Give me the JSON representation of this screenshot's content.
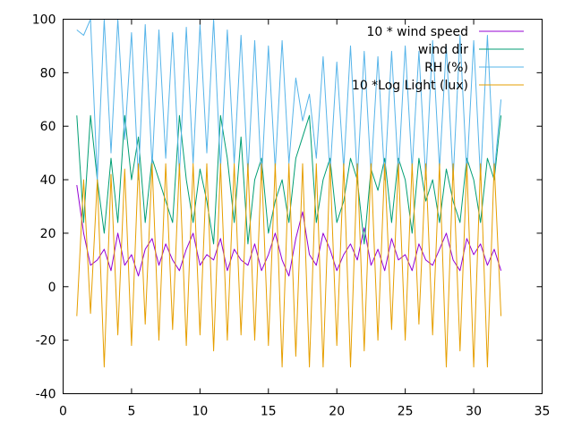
{
  "chart_data": {
    "type": "line",
    "title": "",
    "xlabel": "",
    "ylabel": "",
    "xlim": [
      0,
      35
    ],
    "ylim": [
      -40,
      100
    ],
    "x_ticks": [
      0,
      5,
      10,
      15,
      20,
      25,
      30,
      35
    ],
    "y_ticks": [
      -40,
      -20,
      0,
      20,
      40,
      60,
      80,
      100
    ],
    "x_tick_labels": [
      "0",
      "5",
      "10",
      "15",
      "20",
      "25",
      "30",
      "35"
    ],
    "y_tick_labels": [
      "-40",
      "-20",
      "0",
      "20",
      "40",
      "60",
      "80",
      "100"
    ],
    "grid": false,
    "legend_position": "top-right",
    "x_range_of_data": [
      1,
      32
    ],
    "series": [
      {
        "name": "10 * wind speed",
        "color": "#9400d3",
        "x": [
          1,
          1.5,
          2,
          2.5,
          3,
          3.5,
          4,
          4.5,
          5,
          5.5,
          6,
          6.5,
          7,
          7.5,
          8,
          8.5,
          9,
          9.5,
          10,
          10.5,
          11,
          11.5,
          12,
          12.5,
          13,
          13.5,
          14,
          14.5,
          15,
          15.5,
          16,
          16.5,
          17,
          17.5,
          18,
          18.5,
          19,
          19.5,
          20,
          20.5,
          21,
          21.5,
          22,
          22.5,
          23,
          23.5,
          24,
          24.5,
          25,
          25.5,
          26,
          26.5,
          27,
          27.5,
          28,
          28.5,
          29,
          29.5,
          30,
          30.5,
          31,
          31.5,
          32
        ],
        "values": [
          38,
          20,
          8,
          10,
          14,
          6,
          20,
          8,
          12,
          4,
          14,
          18,
          8,
          16,
          10,
          6,
          14,
          20,
          8,
          12,
          10,
          18,
          6,
          14,
          10,
          8,
          16,
          6,
          12,
          20,
          10,
          4,
          18,
          28,
          12,
          8,
          20,
          14,
          6,
          12,
          16,
          10,
          22,
          8,
          14,
          6,
          18,
          10,
          12,
          6,
          16,
          10,
          8,
          14,
          20,
          10,
          6,
          18,
          12,
          16,
          8,
          14,
          6
        ]
      },
      {
        "name": "wind dir",
        "color": "#009e73",
        "x": [
          1,
          1.5,
          2,
          2.5,
          3,
          3.5,
          4,
          4.5,
          5,
          5.5,
          6,
          6.5,
          7,
          7.5,
          8,
          8.5,
          9,
          9.5,
          10,
          10.5,
          11,
          11.5,
          12,
          12.5,
          13,
          13.5,
          14,
          14.5,
          15,
          15.5,
          16,
          16.5,
          17,
          17.5,
          18,
          18.5,
          19,
          19.5,
          20,
          20.5,
          21,
          21.5,
          22,
          22.5,
          23,
          23.5,
          24,
          24.5,
          25,
          25.5,
          26,
          26.5,
          27,
          27.5,
          28,
          28.5,
          29,
          29.5,
          30,
          30.5,
          31,
          31.5,
          32
        ],
        "values": [
          64,
          24,
          64,
          40,
          20,
          48,
          24,
          64,
          40,
          56,
          24,
          48,
          40,
          32,
          24,
          64,
          40,
          24,
          44,
          32,
          16,
          64,
          48,
          24,
          56,
          16,
          40,
          48,
          20,
          32,
          40,
          24,
          48,
          56,
          64,
          24,
          40,
          48,
          24,
          32,
          48,
          40,
          16,
          44,
          36,
          48,
          24,
          48,
          40,
          20,
          48,
          32,
          40,
          24,
          44,
          32,
          24,
          48,
          40,
          24,
          48,
          40,
          64
        ]
      },
      {
        "name": "RH (%)",
        "color": "#56b4e9",
        "x": [
          1,
          1.5,
          2,
          2.5,
          3,
          3.5,
          4,
          4.5,
          5,
          5.5,
          6,
          6.5,
          7,
          7.5,
          8,
          8.5,
          9,
          9.5,
          10,
          10.5,
          11,
          11.5,
          12,
          12.5,
          13,
          13.5,
          14,
          14.5,
          15,
          15.5,
          16,
          16.5,
          17,
          17.5,
          18,
          18.5,
          19,
          19.5,
          20,
          20.5,
          21,
          21.5,
          22,
          22.5,
          23,
          23.5,
          24,
          24.5,
          25,
          25.5,
          26,
          26.5,
          27,
          27.5,
          28,
          28.5,
          29,
          29.5,
          30,
          30.5,
          31,
          31.5,
          32
        ],
        "values": [
          96,
          94,
          100,
          40,
          100,
          50,
          100,
          55,
          95,
          40,
          98,
          45,
          96,
          48,
          95,
          42,
          97,
          46,
          98,
          50,
          100,
          44,
          96,
          46,
          94,
          42,
          92,
          40,
          90,
          44,
          92,
          46,
          78,
          62,
          72,
          48,
          86,
          42,
          84,
          44,
          90,
          40,
          88,
          42,
          86,
          40,
          88,
          42,
          90,
          44,
          88,
          40,
          92,
          44,
          90,
          40,
          94,
          42,
          92,
          40,
          94,
          42,
          70
        ]
      },
      {
        "name": "10 *Log Light (lux)",
        "color": "#e69f00",
        "x": [
          1,
          1.5,
          2,
          2.5,
          3,
          3.5,
          4,
          4.5,
          5,
          5.5,
          6,
          6.5,
          7,
          7.5,
          8,
          8.5,
          9,
          9.5,
          10,
          10.5,
          11,
          11.5,
          12,
          12.5,
          13,
          13.5,
          14,
          14.5,
          15,
          15.5,
          16,
          16.5,
          17,
          17.5,
          18,
          18.5,
          19,
          19.5,
          20,
          20.5,
          21,
          21.5,
          22,
          22.5,
          23,
          23.5,
          24,
          24.5,
          25,
          25.5,
          26,
          26.5,
          27,
          27.5,
          28,
          28.5,
          29,
          29.5,
          30,
          30.5,
          31,
          31.5,
          32
        ],
        "values": [
          -11,
          40,
          -10,
          40,
          -30,
          42,
          -18,
          44,
          -22,
          46,
          -14,
          46,
          -20,
          46,
          -16,
          46,
          -22,
          46,
          -18,
          46,
          -24,
          46,
          -20,
          46,
          -18,
          46,
          -20,
          46,
          -22,
          46,
          -30,
          46,
          -26,
          46,
          -30,
          46,
          -30,
          46,
          -22,
          46,
          -30,
          46,
          -24,
          46,
          -20,
          46,
          -16,
          46,
          -20,
          46,
          -14,
          46,
          -18,
          46,
          -30,
          46,
          -24,
          46,
          -30,
          46,
          -30,
          46,
          -11
        ]
      }
    ]
  }
}
